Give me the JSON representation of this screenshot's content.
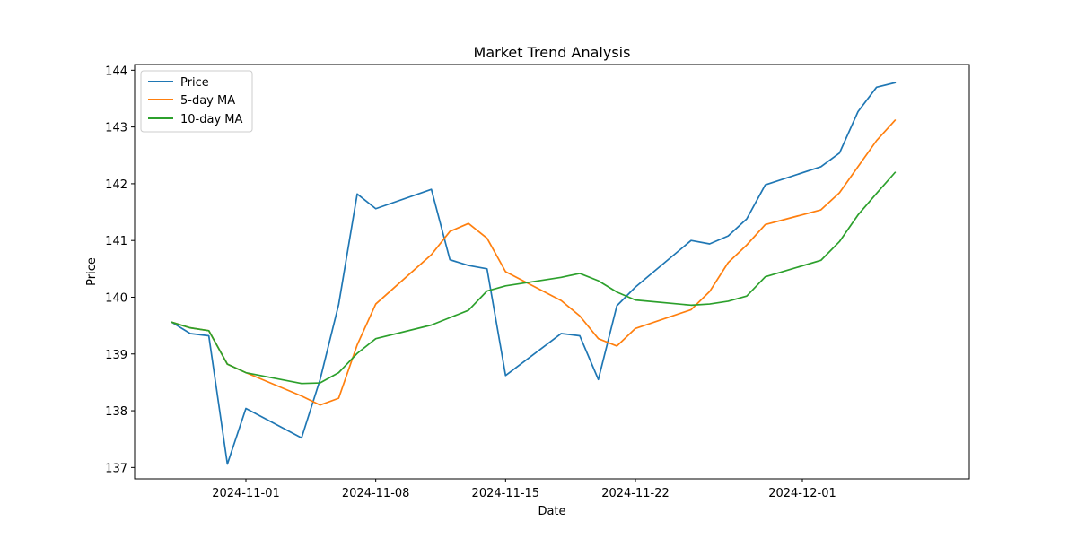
{
  "chart_data": {
    "type": "line",
    "title": "Market Trend Analysis",
    "xlabel": "Date",
    "ylabel": "Price",
    "x_tick_labels": [
      "2024-11-01",
      "2024-11-08",
      "2024-11-15",
      "2024-11-22",
      "2024-12-01"
    ],
    "x_tick_dates": [
      "2024-11-01",
      "2024-11-08",
      "2024-11-15",
      "2024-11-22",
      "2024-12-01"
    ],
    "y_ticks": [
      137,
      138,
      139,
      140,
      141,
      142,
      143,
      144
    ],
    "xlim": [
      "2024-10-26",
      "2024-12-10"
    ],
    "ylim": [
      136.8,
      144.1
    ],
    "grid": false,
    "legend_position": "top-left",
    "x": [
      "2024-10-28",
      "2024-10-29",
      "2024-10-30",
      "2024-10-31",
      "2024-11-01",
      "2024-11-04",
      "2024-11-05",
      "2024-11-06",
      "2024-11-07",
      "2024-11-08",
      "2024-11-11",
      "2024-11-12",
      "2024-11-13",
      "2024-11-14",
      "2024-11-15",
      "2024-11-18",
      "2024-11-19",
      "2024-11-20",
      "2024-11-21",
      "2024-11-22",
      "2024-11-25",
      "2024-11-26",
      "2024-11-27",
      "2024-11-28",
      "2024-11-29",
      "2024-12-02",
      "2024-12-03",
      "2024-12-04",
      "2024-12-05",
      "2024-12-06"
    ],
    "series": [
      {
        "name": "Price",
        "color": "#1f77b4",
        "values": [
          139.56,
          139.36,
          139.32,
          137.06,
          138.04,
          137.52,
          138.55,
          139.87,
          141.82,
          141.56,
          141.9,
          140.66,
          140.56,
          140.5,
          138.62,
          139.36,
          139.32,
          138.55,
          139.85,
          140.18,
          141.0,
          140.94,
          141.08,
          141.38,
          141.98,
          142.3,
          142.54,
          143.27,
          143.7,
          143.78
        ]
      },
      {
        "name": "5-day MA",
        "color": "#ff7f0e",
        "values": [
          139.56,
          139.46,
          139.41,
          138.82,
          138.67,
          138.26,
          138.1,
          138.22,
          139.16,
          139.88,
          140.75,
          141.16,
          141.3,
          141.04,
          140.45,
          139.94,
          139.67,
          139.27,
          139.14,
          139.45,
          139.78,
          140.1,
          140.61,
          140.92,
          141.28,
          141.54,
          141.84,
          142.3,
          142.76,
          143.12
        ]
      },
      {
        "name": "10-day MA",
        "color": "#2ca02c",
        "values": [
          139.56,
          139.46,
          139.41,
          138.82,
          138.67,
          138.48,
          138.49,
          138.67,
          139.01,
          139.27,
          139.51,
          139.64,
          139.77,
          140.11,
          140.2,
          140.35,
          140.42,
          140.29,
          140.09,
          139.95,
          139.86,
          139.88,
          139.93,
          140.02,
          140.36,
          140.65,
          140.98,
          141.45,
          141.83,
          142.2
        ]
      }
    ]
  }
}
